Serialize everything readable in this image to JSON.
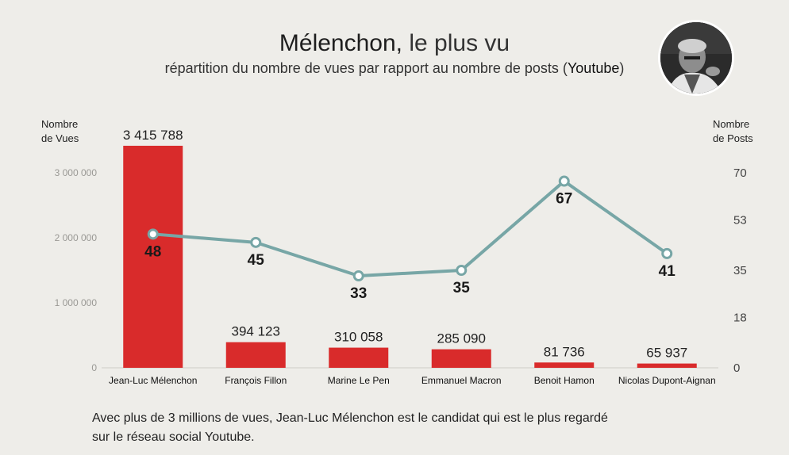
{
  "header": {
    "title_bold": "Mélenchon,",
    "title_rest": " le plus vu",
    "subtitle_pre": "répartition du nombre de vues par rapport au nombre de posts (",
    "subtitle_yt": "Youtube",
    "subtitle_post": ")"
  },
  "axes": {
    "left_title_1": "Nombre",
    "left_title_2": "de Vues",
    "right_title_1": "Nombre",
    "right_title_2": "de Posts"
  },
  "caption": {
    "line1": "Avec plus de 3 millions de vues, Jean-Luc Mélenchon est le candidat qui est le plus regardé",
    "line2": "sur le réseau social Youtube."
  },
  "colors": {
    "bar": "#d92b2b",
    "line": "#77a6a6",
    "marker_fill": "#ffffff",
    "grid": "#cfcdc7",
    "tick_left": "#9a9995",
    "tick_right": "#444444"
  },
  "chart_data": {
    "type": "bar",
    "categories": [
      "Jean-Luc Mélenchon",
      "François Fillon",
      "Marine Le Pen",
      "Emmanuel Macron",
      "Benoit Hamon",
      "Nicolas Dupont-Aignan"
    ],
    "series": [
      {
        "type": "bar",
        "axis": "left",
        "values": [
          3415788,
          394123,
          310058,
          285090,
          81736,
          65937
        ],
        "labels": [
          "3 415 788",
          "394 123",
          "310 058",
          "285 090",
          "81 736",
          "65 937"
        ]
      },
      {
        "type": "line",
        "axis": "right",
        "values": [
          48,
          45,
          33,
          35,
          67,
          41
        ],
        "labels": [
          "48",
          "45",
          "33",
          "35",
          "67",
          "41"
        ]
      }
    ],
    "ylabel": "Nombre de Vues",
    "y2label": "Nombre de Posts",
    "ylim": [
      0,
      3000000
    ],
    "y2lim": [
      0,
      70
    ],
    "yticks": [
      0,
      1000000,
      2000000,
      3000000
    ],
    "ytick_labels": [
      "0",
      "1 000 000",
      "2 000 000",
      "3 000 000"
    ],
    "y2ticks": [
      0,
      18,
      35,
      53,
      70
    ],
    "y2tick_labels": [
      "0",
      "18",
      "35",
      "53",
      "70"
    ],
    "grid": false
  }
}
